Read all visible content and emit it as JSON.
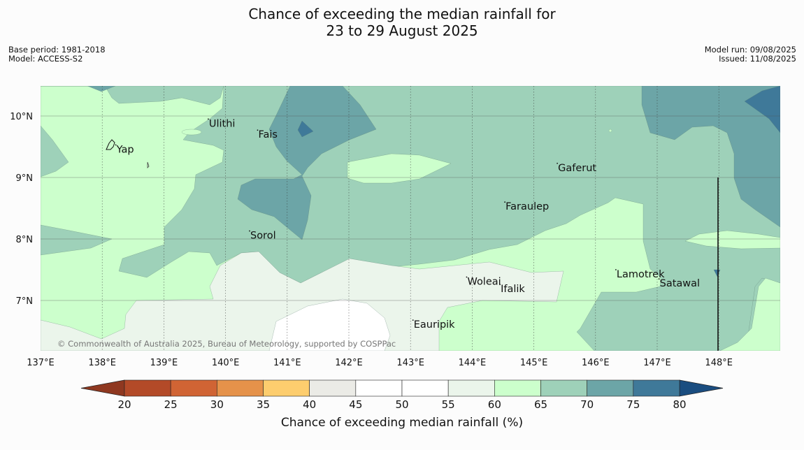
{
  "title": {
    "line1": "Chance of exceeding the median rainfall for",
    "line2": "23 to 29 August 2025"
  },
  "meta_left": {
    "base_period": "Base period: 1981-2018",
    "model": "Model: ACCESS-S2"
  },
  "meta_right": {
    "model_run": "Model run: 09/08/2025",
    "issued": "Issued: 11/08/2025"
  },
  "map": {
    "extent": {
      "lon": [
        137,
        149
      ],
      "lat": [
        6.2,
        10.5
      ]
    },
    "lon_ticks": [
      {
        "value": 137,
        "label": "137°E"
      },
      {
        "value": 138,
        "label": "138°E"
      },
      {
        "value": 139,
        "label": "139°E"
      },
      {
        "value": 140,
        "label": "140°E"
      },
      {
        "value": 141,
        "label": "141°E"
      },
      {
        "value": 142,
        "label": "142°E"
      },
      {
        "value": 143,
        "label": "143°E"
      },
      {
        "value": 144,
        "label": "144°E"
      },
      {
        "value": 145,
        "label": "145°E"
      },
      {
        "value": 146,
        "label": "146°E"
      },
      {
        "value": 147,
        "label": "147°E"
      },
      {
        "value": 148,
        "label": "148°E"
      }
    ],
    "lat_ticks": [
      {
        "value": 10,
        "label": "10°N"
      },
      {
        "value": 9,
        "label": "9°N"
      },
      {
        "value": 8,
        "label": "8°N"
      },
      {
        "value": 7,
        "label": "7°N"
      }
    ],
    "places": [
      {
        "name": "Yap",
        "lon": 138.22,
        "lat": 9.53
      },
      {
        "name": "Ulithi",
        "lon": 139.72,
        "lat": 9.95
      },
      {
        "name": "Fais",
        "lon": 140.52,
        "lat": 9.77
      },
      {
        "name": "Gaferut",
        "lon": 145.38,
        "lat": 9.23
      },
      {
        "name": "Faraulep",
        "lon": 144.53,
        "lat": 8.6
      },
      {
        "name": "Sorol",
        "lon": 140.39,
        "lat": 8.13
      },
      {
        "name": "Woleai",
        "lon": 143.91,
        "lat": 7.38
      },
      {
        "name": "Ifalik",
        "lon": 144.45,
        "lat": 7.26
      },
      {
        "name": "Lamotrek",
        "lon": 146.33,
        "lat": 7.5
      },
      {
        "name": "Satawal",
        "lon": 147.03,
        "lat": 7.35
      },
      {
        "name": "Eauripik",
        "lon": 143.04,
        "lat": 6.68
      }
    ],
    "copyright": "© Commonwealth of Australia 2025, Bureau of Meteorology, supported by COSPPac",
    "palette": {
      "p20_25": "#b34a28",
      "p25_30": "#d06434",
      "p30_35": "#e5924a",
      "p35_40": "#fdcd6e",
      "p40_45": "#ebebe6",
      "p45_55": "#ffffff",
      "p55_60": "#ebf5eb",
      "p60_65": "#ccffcc",
      "p65_70": "#9ed1b9",
      "p70_75": "#6ca5a7",
      "p75_80": "#3f7999",
      "p80_plus": "#1a4d80"
    }
  },
  "colorbar": {
    "label": "Chance of exceeding median rainfall (%)",
    "ticks": [
      "20",
      "25",
      "30",
      "35",
      "40",
      "45",
      "50",
      "55",
      "60",
      "65",
      "70",
      "75",
      "80"
    ],
    "colors": [
      "#b34a28",
      "#d06434",
      "#e5924a",
      "#fdcd6e",
      "#ebebe6",
      "#ffffff",
      "#ffffff",
      "#ebf5eb",
      "#ccffcc",
      "#9ed1b9",
      "#6ca5a7",
      "#3f7999"
    ],
    "under_color": "#8f3820",
    "over_color": "#1a4d80"
  }
}
